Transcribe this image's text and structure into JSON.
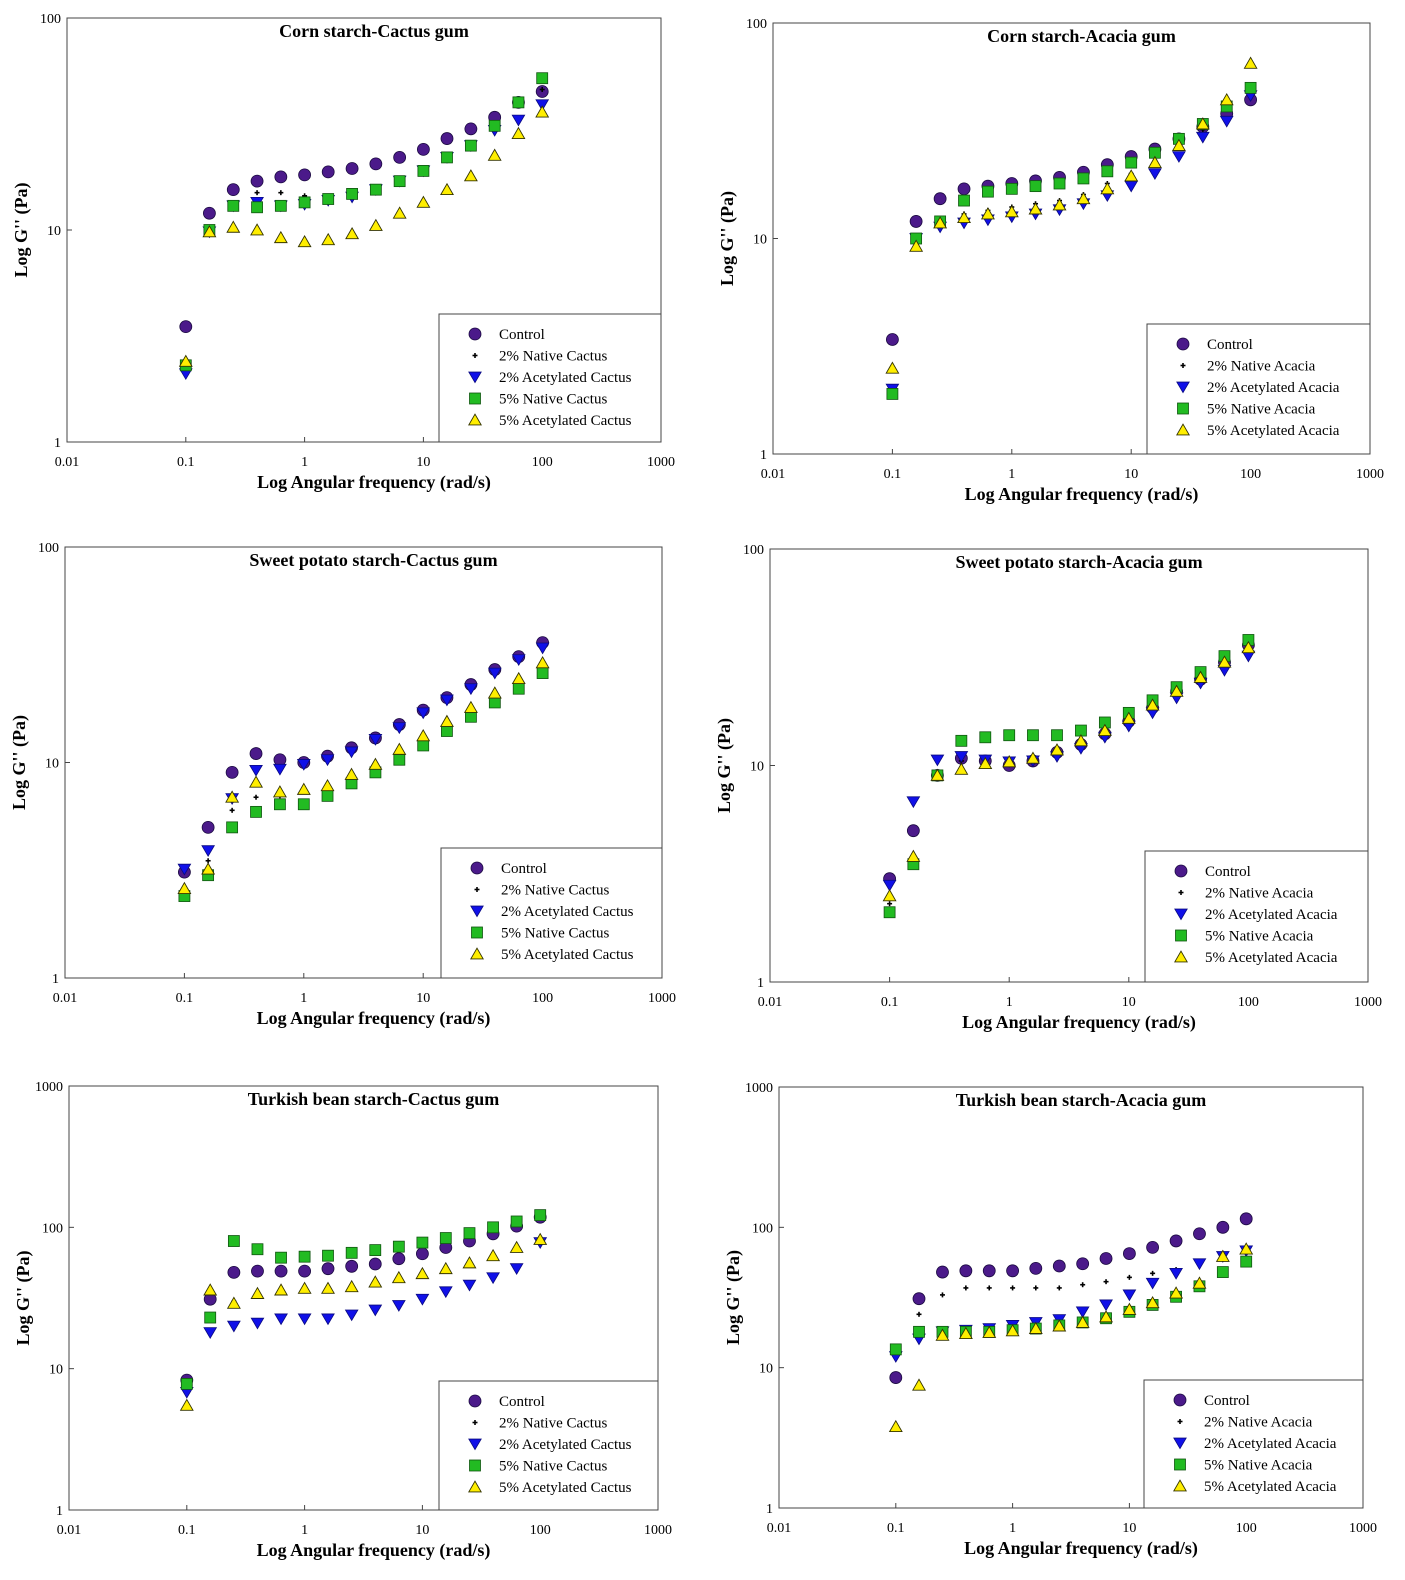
{
  "figure": {
    "y_axis_label": "Log G'' (Pa)",
    "x_axis_label": "Log Angular frequency (rad/s)"
  },
  "chart_data": [
    {
      "type": "scatter",
      "scale": "log-log",
      "title": "Corn starch-Cactus gum",
      "xlabel": "Log Angular frequency (rad/s)",
      "ylabel": "Log G'' (Pa)",
      "xlim": [
        0.01,
        1000
      ],
      "ylim": [
        1,
        100
      ],
      "xticks": [
        "0.01",
        "0.1",
        "1",
        "10",
        "100",
        "1000"
      ],
      "yticks": [
        "1",
        "10",
        "100"
      ],
      "legend_position": "lower-right",
      "x": [
        0.1,
        0.158,
        0.251,
        0.398,
        0.631,
        1,
        1.58,
        2.51,
        3.98,
        6.31,
        10,
        15.8,
        25.1,
        39.8,
        63.1,
        100
      ],
      "series": [
        {
          "name": "Control",
          "marker": "circle",
          "values": [
            3.5,
            12,
            15.5,
            17,
            17.8,
            18.2,
            18.8,
            19.5,
            20.5,
            22,
            24,
            27,
            30,
            34,
            40,
            45
          ]
        },
        {
          "name": "2% Native Cactus",
          "marker": "plus",
          "values": [
            2.3,
            10,
            13,
            15,
            15,
            14.5,
            14,
            14.5,
            15,
            17,
            19,
            22,
            25,
            30,
            39,
            46
          ]
        },
        {
          "name": "2% Acetylated Cactus",
          "marker": "triangle-down",
          "values": [
            2.1,
            9.8,
            13,
            13.5,
            13,
            13.2,
            13.8,
            14.3,
            15.5,
            17,
            19,
            22,
            25,
            29.5,
            33,
            39
          ]
        },
        {
          "name": "5% Native Cactus",
          "marker": "square",
          "values": [
            2.3,
            10,
            13,
            12.8,
            13,
            13.5,
            14,
            14.8,
            15.5,
            17,
            19,
            22,
            25,
            31,
            40,
            52
          ]
        },
        {
          "name": "5% Acetylated Cactus",
          "marker": "triangle-up",
          "values": [
            2.4,
            9.8,
            10.3,
            10,
            9.2,
            8.8,
            9,
            9.6,
            10.5,
            12,
            13.5,
            15.5,
            18,
            22.5,
            28.5,
            36
          ]
        }
      ]
    },
    {
      "type": "scatter",
      "scale": "log-log",
      "title": "Corn starch-Acacia gum",
      "xlabel": "Log Angular frequency (rad/s)",
      "ylabel": "Log G'' (Pa)",
      "xlim": [
        0.01,
        1000
      ],
      "ylim": [
        1,
        100
      ],
      "xticks": [
        "0.01",
        "0.1",
        "1",
        "10",
        "100",
        "1000"
      ],
      "yticks": [
        "1",
        "10",
        "100"
      ],
      "legend_position": "lower-right",
      "x": [
        0.1,
        0.158,
        0.251,
        0.398,
        0.631,
        1,
        1.58,
        2.51,
        3.98,
        6.31,
        10,
        15.8,
        25.1,
        39.8,
        63.1,
        100
      ],
      "series": [
        {
          "name": "Control",
          "marker": "circle",
          "values": [
            3.4,
            12,
            15.3,
            17,
            17.5,
            18,
            18.5,
            19.2,
            20.3,
            22,
            24,
            26,
            29,
            33,
            38,
            44
          ]
        },
        {
          "name": "2% Native Acacia",
          "marker": "plus",
          "values": [
            2.0,
            10,
            12,
            13,
            13.5,
            14,
            14.5,
            15,
            16,
            18,
            20,
            23,
            27,
            32,
            40,
            48
          ]
        },
        {
          "name": "2% Acetylated Acacia",
          "marker": "triangle-down",
          "values": [
            2.0,
            10,
            11.3,
            11.8,
            12.2,
            12.6,
            13,
            13.6,
            14.5,
            15.8,
            17.5,
            20,
            24,
            29.5,
            35,
            46
          ]
        },
        {
          "name": "5% Native Acacia",
          "marker": "square",
          "values": [
            1.9,
            10,
            12,
            15,
            16.5,
            17,
            17.5,
            18,
            19,
            20.5,
            22.5,
            25,
            29,
            34,
            41,
            50
          ]
        },
        {
          "name": "5% Acetylated Acacia",
          "marker": "triangle-up",
          "values": [
            2.5,
            9.2,
            11.8,
            12.5,
            13,
            13.3,
            13.7,
            14.3,
            15.3,
            17,
            19.5,
            22.5,
            27,
            34,
            44,
            65
          ]
        }
      ]
    },
    {
      "type": "scatter",
      "scale": "log-log",
      "title": "Sweet potato starch-Cactus gum",
      "xlabel": "Log Angular frequency (rad/s)",
      "ylabel": "Log G'' (Pa)",
      "xlim": [
        0.01,
        1000
      ],
      "ylim": [
        1,
        100
      ],
      "xticks": [
        "0.01",
        "0.1",
        "1",
        "10",
        "100",
        "1000"
      ],
      "yticks": [
        "1",
        "10",
        "100"
      ],
      "legend_position": "lower-right",
      "x": [
        0.1,
        0.158,
        0.251,
        0.398,
        0.631,
        1,
        1.58,
        2.51,
        3.98,
        6.31,
        10,
        15.8,
        25.1,
        39.8,
        63.1,
        100
      ],
      "series": [
        {
          "name": "Control",
          "marker": "circle",
          "values": [
            3.1,
            5.0,
            9.0,
            11,
            10.3,
            10,
            10.7,
            11.7,
            13,
            15,
            17.5,
            20,
            23,
            27,
            31,
            36
          ]
        },
        {
          "name": "2% Native Cactus",
          "marker": "plus",
          "values": [
            2.6,
            3.5,
            6.0,
            6.9,
            7.0,
            7.3,
            7.8,
            8.5,
            9.5,
            11,
            12.8,
            15,
            17.5,
            20.5,
            24,
            28
          ]
        },
        {
          "name": "2% Acetylated Cactus",
          "marker": "triangle-down",
          "values": [
            3.2,
            3.9,
            6.8,
            9.2,
            9.3,
            9.8,
            10.3,
            11.2,
            12.8,
            14.5,
            17,
            19.5,
            22,
            26,
            30,
            34
          ]
        },
        {
          "name": "5% Native Cactus",
          "marker": "square",
          "values": [
            2.4,
            3.0,
            5.0,
            5.9,
            6.4,
            6.4,
            7.0,
            8.0,
            9.0,
            10.3,
            12,
            14,
            16.3,
            19,
            22,
            26
          ]
        },
        {
          "name": "5% Acetylated Cactus",
          "marker": "triangle-up",
          "values": [
            2.6,
            3.2,
            6.9,
            8.1,
            7.3,
            7.5,
            7.8,
            8.8,
            9.8,
            11.5,
            13.3,
            15.5,
            18,
            21,
            24.5,
            29
          ]
        }
      ]
    },
    {
      "type": "scatter",
      "scale": "log-log",
      "title": "Sweet potato starch-Acacia gum",
      "xlabel": "Log Angular frequency (rad/s)",
      "ylabel": "Log G'' (Pa)",
      "xlim": [
        0.01,
        1000
      ],
      "ylim": [
        1,
        100
      ],
      "xticks": [
        "0.01",
        "0.1",
        "1",
        "10",
        "100",
        "1000"
      ],
      "yticks": [
        "1",
        "10",
        "100"
      ],
      "legend_position": "lower-right",
      "x": [
        0.1,
        0.158,
        0.251,
        0.398,
        0.631,
        1,
        1.58,
        2.51,
        3.98,
        6.31,
        10,
        15.8,
        25.1,
        39.8,
        63.1,
        100
      ],
      "series": [
        {
          "name": "Control",
          "marker": "circle",
          "values": [
            3.0,
            5.0,
            9.0,
            10.8,
            10.5,
            10.0,
            10.5,
            11.5,
            12.5,
            14.0,
            16.0,
            18.5,
            22,
            25,
            30,
            36
          ]
        },
        {
          "name": "2% Native Acacia",
          "marker": "plus",
          "values": [
            2.3,
            3.5,
            9.0,
            10.5,
            10.5,
            10.5,
            10.5,
            11.5,
            12.5,
            14.0,
            16.0,
            18.5,
            22,
            25,
            30,
            35
          ]
        },
        {
          "name": "2% Acetylated Acacia",
          "marker": "triangle-down",
          "values": [
            2.8,
            6.8,
            10.6,
            11,
            10.6,
            10.4,
            10.5,
            11,
            12,
            13.5,
            15.2,
            17.5,
            20.5,
            24,
            27.5,
            32
          ]
        },
        {
          "name": "5% Native Acacia",
          "marker": "square",
          "values": [
            2.1,
            3.5,
            9.0,
            13.0,
            13.5,
            13.8,
            13.8,
            13.8,
            14.5,
            15.8,
            17.5,
            20,
            23,
            27,
            32,
            38
          ]
        },
        {
          "name": "5% Acetylated Acacia",
          "marker": "triangle-up",
          "values": [
            2.5,
            3.8,
            9.0,
            9.6,
            10.2,
            10.4,
            10.8,
            11.8,
            13,
            14.5,
            16.5,
            19,
            22,
            25.5,
            30,
            35
          ]
        }
      ]
    },
    {
      "type": "scatter",
      "scale": "log-log",
      "title": "Turkish bean starch-Cactus gum",
      "xlabel": "Log Angular frequency (rad/s)",
      "ylabel": "Log G'' (Pa)",
      "xlim": [
        0.01,
        1000
      ],
      "ylim": [
        1,
        1000
      ],
      "xticks": [
        "0.01",
        "0.1",
        "1",
        "10",
        "100",
        "1000"
      ],
      "yticks": [
        "1",
        "10",
        "100",
        "1000"
      ],
      "legend_position": "lower-right",
      "x": [
        0.1,
        0.158,
        0.251,
        0.398,
        0.631,
        1,
        1.58,
        2.51,
        3.98,
        6.31,
        10,
        15.8,
        25.1,
        39.8,
        63.1,
        100
      ],
      "series": [
        {
          "name": "Control",
          "marker": "circle",
          "values": [
            8.3,
            31,
            48,
            49,
            49,
            49,
            51,
            53,
            55,
            60,
            65,
            72,
            80,
            90,
            102,
            118
          ]
        },
        {
          "name": "2% Native Cactus",
          "marker": "plus",
          "values": [
            7.5,
            24,
            30,
            34,
            36,
            37,
            37,
            38,
            41,
            44,
            47,
            51,
            56,
            63,
            72,
            78
          ]
        },
        {
          "name": "2% Acetylated Cactus",
          "marker": "triangle-down",
          "values": [
            6.8,
            18,
            20,
            21,
            22.5,
            22.5,
            22.5,
            24,
            26,
            28,
            31,
            35,
            39,
            44,
            51,
            78
          ]
        },
        {
          "name": "5% Native Cactus",
          "marker": "square",
          "values": [
            7.8,
            23,
            80,
            70,
            61,
            62,
            63,
            66,
            69,
            73,
            78,
            84,
            91,
            100,
            110,
            122
          ]
        },
        {
          "name": "5% Acetylated Cactus",
          "marker": "triangle-up",
          "values": [
            5.5,
            36,
            29,
            34,
            36,
            37,
            37,
            38,
            41,
            44,
            47,
            51,
            56,
            63,
            72,
            82
          ]
        }
      ]
    },
    {
      "type": "scatter",
      "scale": "log-log",
      "title": "Turkish bean starch-Acacia gum",
      "xlabel": "Log Angular frequency (rad/s)",
      "ylabel": "Log G'' (Pa)",
      "xlim": [
        0.01,
        1000
      ],
      "ylim": [
        1,
        1000
      ],
      "xticks": [
        "0.01",
        "0.1",
        "1",
        "10",
        "100",
        "1000"
      ],
      "yticks": [
        "1",
        "10",
        "100",
        "1000"
      ],
      "legend_position": "lower-right",
      "x": [
        0.1,
        0.158,
        0.251,
        0.398,
        0.631,
        1,
        1.58,
        2.51,
        3.98,
        6.31,
        10,
        15.8,
        25.1,
        39.8,
        63.1,
        100
      ],
      "series": [
        {
          "name": "Control",
          "marker": "circle",
          "values": [
            8.5,
            31,
            48,
            49,
            49,
            49,
            51,
            53,
            55,
            60,
            65,
            72,
            80,
            90,
            100,
            115
          ]
        },
        {
          "name": "2% Native Acacia",
          "marker": "plus",
          "values": [
            12.5,
            24,
            33,
            37,
            37,
            37,
            37,
            37,
            39,
            41,
            44,
            47,
            50,
            55,
            60,
            65
          ]
        },
        {
          "name": "2% Acetylated Acacia",
          "marker": "triangle-down",
          "values": [
            12,
            16,
            18,
            18.5,
            19,
            20,
            21,
            22,
            25,
            28,
            33,
            40,
            47,
            55,
            62,
            68
          ]
        },
        {
          "name": "5% Native Acacia",
          "marker": "square",
          "values": [
            13.5,
            18,
            18,
            18,
            18,
            18.5,
            19,
            20,
            21,
            22.5,
            25,
            28,
            32,
            38,
            48,
            57
          ]
        },
        {
          "name": "5% Acetylated Acacia",
          "marker": "triangle-up",
          "values": [
            3.8,
            7.5,
            17,
            17.5,
            17.8,
            18.3,
            19,
            19.8,
            21,
            23,
            26,
            29,
            34,
            40,
            62,
            70
          ]
        }
      ]
    }
  ],
  "colors": {
    "circle": "#4b1a8a",
    "plus": "#000000",
    "triangle-down": "#1010e8",
    "square": "#22bb22",
    "triangle-up": "#ffee00",
    "frame": "#444444"
  }
}
